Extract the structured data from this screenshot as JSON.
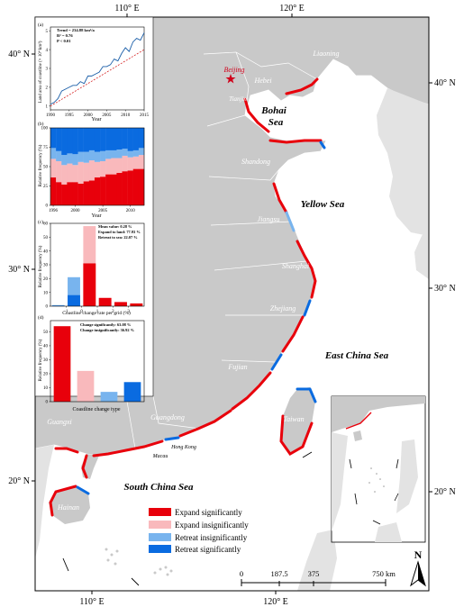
{
  "map": {
    "graticule": {
      "top": [
        "110° E",
        "120° E"
      ],
      "bottom": [
        "110° E",
        "120° E"
      ],
      "left": [
        "40° N",
        "30° N",
        "20° N"
      ],
      "right": [
        "40° N",
        "30° N",
        "20° N"
      ]
    },
    "seas": [
      "Bohai Sea",
      "Yellow Sea",
      "East China Sea",
      "South China Sea"
    ],
    "provinces": [
      "Liaoning",
      "Hebei",
      "Tianjin",
      "Shandong",
      "Jiangsu",
      "Shanghai",
      "Zhejiang",
      "Fujian",
      "Taiwan",
      "Guangdong",
      "Guangxi",
      "Hainan"
    ],
    "cities": [
      "Hong Kong",
      "Macau"
    ],
    "capital": "Beijing",
    "legend": [
      {
        "label": "Expand significantly",
        "color": "#e8000b"
      },
      {
        "label": "Expand insignificantly",
        "color": "#f9b9bc"
      },
      {
        "label": "Retreat insignificantly",
        "color": "#78b4ee"
      },
      {
        "label": "Retreat significantly",
        "color": "#0a6be0"
      }
    ],
    "scale_bar": {
      "labels": [
        "0",
        "187.5",
        "375",
        "750 km"
      ]
    },
    "north_arrow": "N"
  },
  "charts": {
    "a": {
      "panel": "(a)",
      "type": "line",
      "stats": [
        "Trend = 234.88 km²/a",
        "R² = 0.76",
        "P < 0.01"
      ],
      "ylabel": "Land area of coastline (× 10⁴ km²)",
      "xlabel": "Year",
      "xticks": [
        "1990",
        "1995",
        "2000",
        "2005",
        "2010",
        "2015"
      ],
      "yticks": [
        "1",
        "2",
        "3",
        "4",
        "5"
      ],
      "x": [
        1990,
        1991,
        1992,
        1993,
        1994,
        1995,
        1996,
        1997,
        1998,
        1999,
        2000,
        2001,
        2002,
        2003,
        2004,
        2005,
        2006,
        2007,
        2008,
        2009,
        2010,
        2011,
        2012,
        2013,
        2014,
        2015
      ],
      "y": [
        1.1,
        1.2,
        1.4,
        1.8,
        1.9,
        2.0,
        2.1,
        2.1,
        2.3,
        2.2,
        2.6,
        2.6,
        2.7,
        2.8,
        3.1,
        3.1,
        3.2,
        3.5,
        3.4,
        3.8,
        4.1,
        3.9,
        4.4,
        4.6,
        4.5,
        4.9
      ],
      "trend": {
        "from": [
          1990,
          1.0
        ],
        "to": [
          2015,
          4.0
        ]
      },
      "xlim": [
        1990,
        2015
      ],
      "ylim": [
        0.8,
        5.2
      ],
      "colors": {
        "line": "#1a5ea8",
        "trend": "#d62728"
      }
    },
    "b": {
      "panel": "(b)",
      "type": "stacked-bar",
      "ylabel": "Relative frequency (%)",
      "xlabel": "Year",
      "xticks": [
        "1996",
        "2000",
        "2005",
        "2010"
      ],
      "yticks": [
        "0",
        "25",
        "50",
        "75",
        "100"
      ],
      "years": [
        1996,
        1997,
        1998,
        1999,
        2000,
        2001,
        2002,
        2003,
        2004,
        2005,
        2006,
        2007,
        2008,
        2009,
        2010,
        2011,
        2012
      ],
      "expand_sig": [
        36,
        30,
        27,
        30,
        30,
        28,
        31,
        32,
        36,
        37,
        40,
        40,
        42,
        44,
        45,
        47,
        47
      ],
      "expand_insig": [
        24,
        27,
        25,
        24,
        22,
        28,
        24,
        26,
        20,
        20,
        20,
        21,
        19,
        20,
        17,
        16,
        18
      ],
      "retreat_insig": [
        14,
        13,
        13,
        13,
        14,
        13,
        14,
        13,
        13,
        13,
        11,
        10,
        11,
        9,
        8,
        8,
        9
      ],
      "retreat_sig": [
        26,
        30,
        35,
        33,
        34,
        31,
        31,
        29,
        31,
        30,
        29,
        29,
        28,
        27,
        30,
        29,
        26
      ]
    },
    "c": {
      "panel": "(c)",
      "type": "bar",
      "stats": [
        "Mean value: 0.28 %",
        "Expand to land: 77.93 %",
        "Retreat to sea: 22.07 %"
      ],
      "ylabel": "Relative frequency (%)",
      "xlabel": "Coastline change rate per grid (%)",
      "xticks": [
        "-1",
        "0",
        "1",
        "2",
        "3"
      ],
      "yticks": [
        "0",
        "10",
        "20",
        "30",
        "40",
        "50",
        "60"
      ],
      "bars": [
        {
          "x": -1.5,
          "total": 0.8,
          "dark": 0.4
        },
        {
          "x": -0.5,
          "total": 21,
          "dark": 8
        },
        {
          "x": 0.5,
          "total": 58,
          "dark": 31
        },
        {
          "x": 1.5,
          "total": 6,
          "dark": 6
        },
        {
          "x": 2.5,
          "total": 3,
          "dark": 3
        },
        {
          "x": 3.5,
          "total": 2,
          "dark": 2
        }
      ],
      "ylim": [
        0,
        60
      ]
    },
    "d": {
      "panel": "(d)",
      "type": "bar",
      "stats": [
        "Change significantly: 63.08 %",
        "Change insignificantly: 36.92 %"
      ],
      "ylabel": "Relative frequency (%)",
      "xlabel": "Coastline change type",
      "yticks": [
        "0",
        "10",
        "20",
        "30",
        "40",
        "50"
      ],
      "values": [
        54,
        22,
        7,
        14
      ],
      "colors": [
        "#e8000b",
        "#f9b9bc",
        "#78b4ee",
        "#0a6be0"
      ],
      "ylim": [
        0,
        58
      ]
    }
  }
}
